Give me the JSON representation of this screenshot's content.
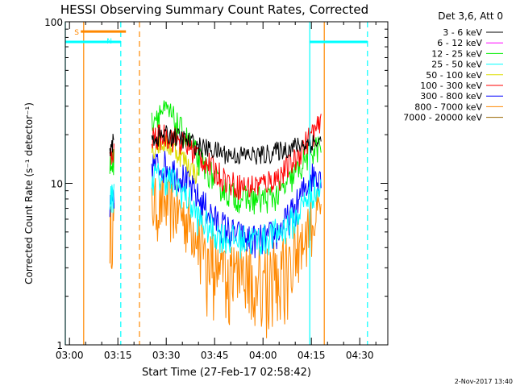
{
  "chart_data": {
    "type": "line",
    "title": "HESSI Observing Summary Count Rates, Corrected",
    "xlabel": "Start Time (27-Feb-17 02:58:42)",
    "ylabel": "Corrected Count Rate (s⁻¹ detector⁻¹)",
    "y_scale": "log",
    "ylim": [
      1,
      100
    ],
    "xlim_minutes": [
      58.7,
      158.7
    ],
    "x_ticks": [
      {
        "label": "03:00",
        "minute": 60
      },
      {
        "label": "03:15",
        "minute": 75
      },
      {
        "label": "03:30",
        "minute": 90
      },
      {
        "label": "03:45",
        "minute": 105
      },
      {
        "label": "04:00",
        "minute": 120
      },
      {
        "label": "04:15",
        "minute": 135
      },
      {
        "label": "04:30",
        "minute": 150
      }
    ],
    "y_ticks": [
      {
        "label": "1",
        "value": 1
      },
      {
        "label": "10",
        "value": 10
      },
      {
        "label": "100",
        "value": 100
      }
    ],
    "legend_header": "Det 3,6, Att 0",
    "legend_position": "right",
    "footer_date": "2-Nov-2017 13:40",
    "segments": [
      [
        72.5,
        73.8
      ],
      [
        85.5,
        138.0
      ]
    ],
    "series": [
      {
        "name": "3 - 6 keV",
        "color": "#000000",
        "values": [
          [
            72.5,
            17
          ],
          [
            73.8,
            18
          ],
          [
            85.5,
            19
          ],
          [
            90,
            20
          ],
          [
            95,
            19
          ],
          [
            100,
            17
          ],
          [
            105,
            16
          ],
          [
            110,
            15
          ],
          [
            115,
            15
          ],
          [
            120,
            15
          ],
          [
            125,
            16
          ],
          [
            130,
            17
          ],
          [
            135,
            18
          ],
          [
            138,
            18
          ]
        ]
      },
      {
        "name": "6 - 12 keV",
        "color": "#ff00ff",
        "values": []
      },
      {
        "name": "12 - 25 keV",
        "color": "#00ee00",
        "values": [
          [
            72.5,
            13
          ],
          [
            73.8,
            14
          ],
          [
            85.5,
            25
          ],
          [
            88,
            28
          ],
          [
            91,
            27
          ],
          [
            94,
            22
          ],
          [
            97,
            18
          ],
          [
            100,
            14
          ],
          [
            103,
            12
          ],
          [
            106,
            10
          ],
          [
            110,
            8.5
          ],
          [
            115,
            8
          ],
          [
            120,
            8
          ],
          [
            125,
            8.5
          ],
          [
            128,
            10
          ],
          [
            132,
            13
          ],
          [
            135,
            16
          ],
          [
            138,
            17
          ]
        ]
      },
      {
        "name": "25 - 50 keV",
        "color": "#00ffff",
        "values": [
          [
            72.5,
            8
          ],
          [
            73.8,
            8.5
          ],
          [
            85.5,
            11
          ],
          [
            90,
            11
          ],
          [
            95,
            9
          ],
          [
            100,
            6
          ],
          [
            105,
            5
          ],
          [
            110,
            4.5
          ],
          [
            115,
            4.5
          ],
          [
            120,
            4.5
          ],
          [
            125,
            5
          ],
          [
            130,
            6
          ],
          [
            135,
            9
          ],
          [
            138,
            9
          ]
        ]
      },
      {
        "name": "50 - 100 keV",
        "color": "#dddd00",
        "values": [
          [
            85.5,
            16
          ],
          [
            89,
            18
          ],
          [
            93,
            16
          ],
          [
            97,
            13
          ],
          [
            100,
            11
          ]
        ]
      },
      {
        "name": "100 - 300 keV",
        "color": "#ff0000",
        "values": [
          [
            72.5,
            14
          ],
          [
            73.8,
            15
          ],
          [
            85.5,
            19
          ],
          [
            90,
            20
          ],
          [
            95,
            18
          ],
          [
            100,
            15
          ],
          [
            105,
            12
          ],
          [
            110,
            10
          ],
          [
            115,
            9.5
          ],
          [
            120,
            10
          ],
          [
            125,
            11
          ],
          [
            130,
            14
          ],
          [
            135,
            20
          ],
          [
            138,
            23
          ]
        ]
      },
      {
        "name": "300 - 800 keV",
        "color": "#0000ff",
        "values": [
          [
            72.5,
            7
          ],
          [
            73.8,
            7.5
          ],
          [
            85.5,
            13
          ],
          [
            90,
            13
          ],
          [
            95,
            11
          ],
          [
            100,
            8
          ],
          [
            105,
            6
          ],
          [
            110,
            5
          ],
          [
            115,
            4.5
          ],
          [
            120,
            4.5
          ],
          [
            125,
            5
          ],
          [
            130,
            7
          ],
          [
            135,
            11
          ],
          [
            138,
            12
          ]
        ]
      },
      {
        "name": "800 - 7000 keV",
        "color": "#ff8800",
        "values": [
          [
            72.5,
            5
          ],
          [
            73.8,
            5.5
          ],
          [
            85.5,
            7.5
          ],
          [
            90,
            7.5
          ],
          [
            95,
            6.5
          ],
          [
            100,
            5
          ],
          [
            105,
            3.5
          ],
          [
            110,
            3
          ],
          [
            115,
            3
          ],
          [
            120,
            3
          ],
          [
            125,
            3
          ],
          [
            130,
            4
          ],
          [
            135,
            6
          ],
          [
            138,
            6.5
          ]
        ]
      },
      {
        "name": "7000 - 20000 keV",
        "color": "#996600",
        "values": []
      }
    ],
    "annotations": [
      {
        "label": "S",
        "color": "#ff8800",
        "x_minute": 61.5,
        "y_value": 87,
        "bar_end_minute": 77.5
      },
      {
        "label": "N",
        "color": "#00ffff",
        "x_minute": 71.5,
        "y_value": 77,
        "bar_end_minute": 75.9
      }
    ],
    "vlines": [
      {
        "minute": 58.7,
        "color": "#00ffff",
        "style": "solid"
      },
      {
        "minute": 64.4,
        "color": "#ff8800",
        "style": "solid"
      },
      {
        "minute": 75.9,
        "color": "#00ffff",
        "style": "dashed"
      },
      {
        "minute": 81.7,
        "color": "#ff8800",
        "style": "dashed"
      },
      {
        "minute": 134.5,
        "color": "#00ffff",
        "style": "solid"
      },
      {
        "minute": 139.0,
        "color": "#ff8800",
        "style": "solid"
      },
      {
        "minute": 152.4,
        "color": "#00ffff",
        "style": "dashed"
      }
    ],
    "hbars": [
      {
        "from_minute": 58.7,
        "to_minute": 75.9,
        "y_value": 75,
        "color": "#00ffff"
      },
      {
        "from_minute": 134.5,
        "to_minute": 152.4,
        "y_value": 75,
        "color": "#00ffff"
      }
    ]
  }
}
